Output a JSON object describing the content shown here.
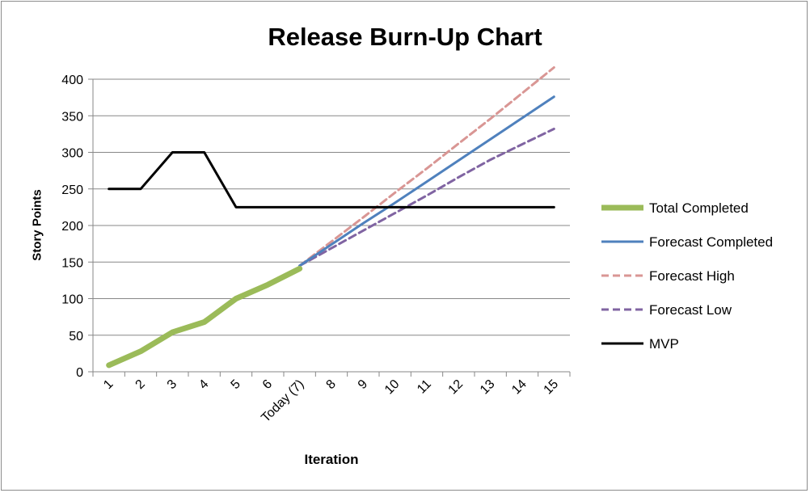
{
  "chart_data": {
    "type": "line",
    "title": "Release Burn-Up Chart",
    "xlabel": "Iteration",
    "ylabel": "Story Points",
    "categories": [
      "1",
      "2",
      "3",
      "4",
      "5",
      "6",
      "Today (7)",
      "8",
      "9",
      "10",
      "11",
      "12",
      "13",
      "14",
      "15"
    ],
    "ylim": [
      0,
      400
    ],
    "yticks": [
      0,
      50,
      100,
      150,
      200,
      250,
      300,
      350,
      400
    ],
    "grid": true,
    "legend_position": "right",
    "series": [
      {
        "name": "Total Completed",
        "color": "#9bbb59",
        "dash": "solid",
        "width": "thick",
        "values": [
          9,
          28,
          54,
          68,
          100,
          119,
          141,
          null,
          null,
          null,
          null,
          null,
          null,
          null,
          null
        ]
      },
      {
        "name": "Forecast Completed",
        "color": "#4f81bd",
        "dash": "solid",
        "width": "normal",
        "values": [
          null,
          null,
          null,
          null,
          null,
          null,
          145,
          174,
          203,
          231,
          260,
          289,
          318,
          347,
          null
        ]
      },
      {
        "name": "Forecast High",
        "color": "#d99694",
        "dash": "dashed",
        "width": "normal",
        "values": [
          null,
          null,
          null,
          null,
          null,
          null,
          145,
          178,
          211,
          245,
          278,
          312,
          346,
          381,
          null
        ]
      },
      {
        "name": "Forecast Low",
        "color": "#8064a2",
        "dash": "dashed",
        "width": "normal",
        "values": [
          null,
          null,
          null,
          null,
          null,
          null,
          145,
          169,
          193,
          217,
          241,
          266,
          290,
          311,
          null
        ]
      },
      {
        "name": "MVP",
        "color": "#000000",
        "dash": "solid",
        "width": "normal",
        "values": [
          250,
          250,
          300,
          300,
          225,
          225,
          225,
          225,
          225,
          225,
          225,
          225,
          225,
          225,
          225
        ]
      }
    ]
  }
}
